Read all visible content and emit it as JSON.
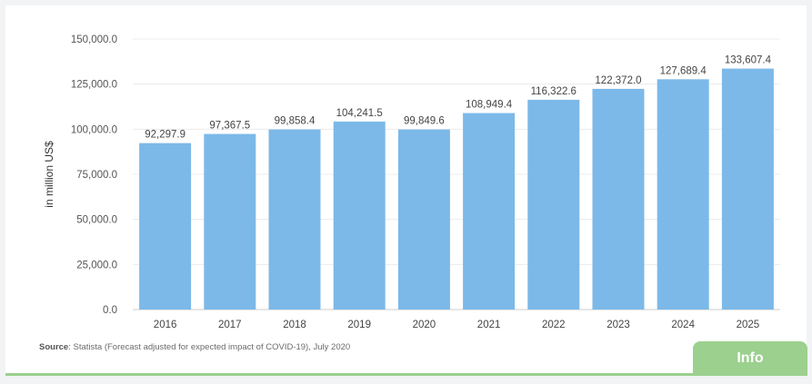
{
  "chart_data": {
    "type": "bar",
    "categories": [
      "2016",
      "2017",
      "2018",
      "2019",
      "2020",
      "2021",
      "2022",
      "2023",
      "2024",
      "2025"
    ],
    "values": [
      92297.9,
      97367.5,
      99858.4,
      104241.5,
      99849.6,
      108949.4,
      116322.6,
      122372.0,
      127689.4,
      133607.4
    ],
    "data_labels": [
      "92,297.9",
      "97,367.5",
      "99,858.4",
      "104,241.5",
      "99,849.6",
      "108,949.4",
      "116,322.6",
      "122,372.0",
      "127,689.4",
      "133,607.4"
    ],
    "ylabel": "in million US$",
    "ylim": [
      0,
      150000
    ],
    "yticks": [
      0,
      25000,
      50000,
      75000,
      100000,
      125000,
      150000
    ],
    "ytick_labels": [
      "0.0",
      "25,000.0",
      "50,000.0",
      "75,000.0",
      "100,000.0",
      "125,000.0",
      "150,000.0"
    ],
    "grid": true,
    "bar_color": "#7cb9e8"
  },
  "source": {
    "label": "Source",
    "text": ": Statista (Forecast adjusted for expected impact of COVID-19), July 2020"
  },
  "info_button": {
    "label": "Info"
  },
  "colors": {
    "accent": "#9bd08e",
    "bar": "#7cb9e8"
  }
}
